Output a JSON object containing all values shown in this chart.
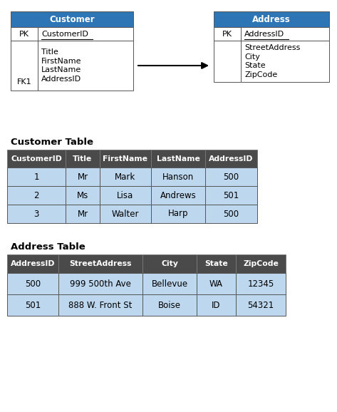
{
  "header_color": "#2E75B6",
  "header_text_color": "#FFFFFF",
  "row_light_color": "#BDD7EE",
  "row_white_color": "#FFFFFF",
  "border_color": "#555555",
  "dark_header_color": "#4A4A4A",
  "schema_title_customer": "Customer",
  "schema_title_address": "Address",
  "customer_table_title": "Customer Table",
  "customer_table_headers": [
    "CustomerID",
    "Title",
    "FirstName",
    "LastName",
    "AddressID"
  ],
  "customer_table_rows": [
    [
      "1",
      "Mr",
      "Mark",
      "Hanson",
      "500"
    ],
    [
      "2",
      "Ms",
      "Lisa",
      "Andrews",
      "501"
    ],
    [
      "3",
      "Mr",
      "Walter",
      "Harp",
      "500"
    ]
  ],
  "address_table_title": "Address Table",
  "address_table_headers": [
    "AddressID",
    "StreetAddress",
    "City",
    "State",
    "ZipCode"
  ],
  "address_table_rows": [
    [
      "500",
      "999 500th Ave",
      "Bellevue",
      "WA",
      "12345"
    ],
    [
      "501",
      "888 W. Front St",
      "Boise",
      "ID",
      "54321"
    ]
  ],
  "figw": 4.73,
  "figh": 5.78,
  "dpi": 100
}
